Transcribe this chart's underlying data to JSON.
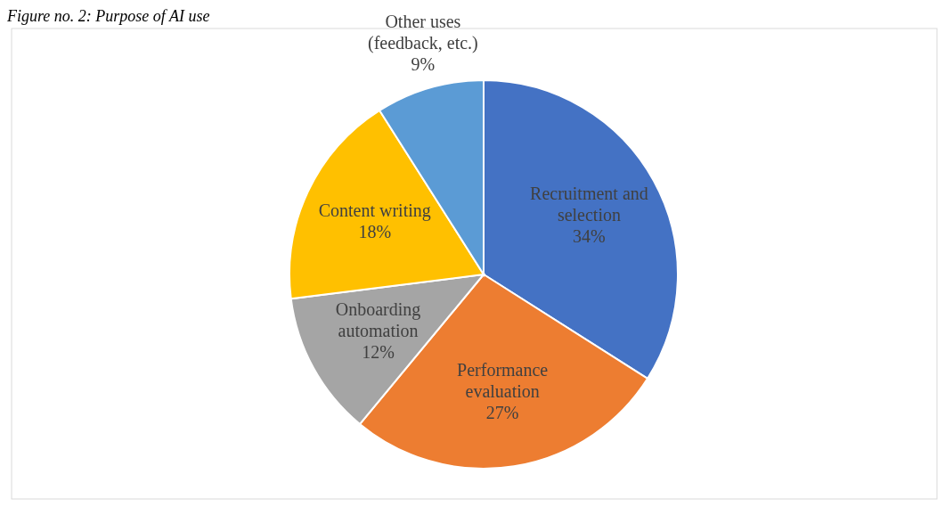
{
  "chart_data": {
    "type": "pie",
    "title": "Figure no. 2: Purpose of AI use",
    "categories": [
      "Recruitment and selection",
      "Performance evaluation",
      "Onboarding automation",
      "Content writing",
      "Other uses (feedback, etc.)"
    ],
    "values": [
      34,
      27,
      12,
      18,
      9
    ],
    "colors": [
      "#4472c4",
      "#ed7d31",
      "#a5a5a5",
      "#ffc000",
      "#5b9bd5"
    ],
    "value_labels": [
      "34%",
      "27%",
      "12%",
      "18%",
      "9%"
    ],
    "legend": false
  }
}
